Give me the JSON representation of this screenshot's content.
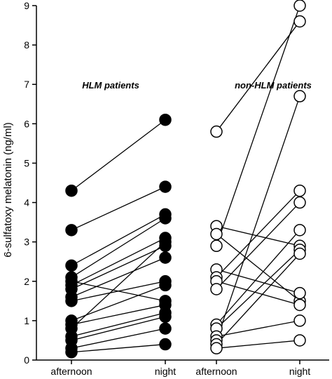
{
  "chart_data": {
    "type": "scatter",
    "ylabel": "6-sulfatoxy melatonin (ng/ml)",
    "ylim": [
      0,
      9
    ],
    "yticks": [
      0,
      1,
      2,
      3,
      4,
      5,
      6,
      7,
      8,
      9
    ],
    "grid": false,
    "categories": [
      "afternoon",
      "night",
      "afternoon",
      "night"
    ],
    "groups": [
      {
        "label": "HLM patients",
        "marker": "filled",
        "categories": [
          "afternoon",
          "night"
        ],
        "pairs": [
          [
            4.3,
            6.1
          ],
          [
            3.3,
            4.4
          ],
          [
            2.4,
            3.7
          ],
          [
            2.1,
            3.6
          ],
          [
            2.0,
            1.5
          ],
          [
            1.9,
            3.1
          ],
          [
            1.8,
            2.9
          ],
          [
            1.6,
            2.6
          ],
          [
            1.5,
            2.0
          ],
          [
            1.0,
            1.9
          ],
          [
            0.9,
            1.4
          ],
          [
            0.8,
            3.0
          ],
          [
            0.6,
            1.2
          ],
          [
            0.5,
            1.1
          ],
          [
            0.3,
            0.8
          ],
          [
            0.2,
            0.4
          ]
        ]
      },
      {
        "label": "non-HLM patients",
        "marker": "open",
        "categories": [
          "afternoon",
          "night"
        ],
        "pairs": [
          [
            5.8,
            8.6
          ],
          [
            3.4,
            2.9
          ],
          [
            3.2,
            1.5
          ],
          [
            2.9,
            9.0
          ],
          [
            2.3,
            1.7
          ],
          [
            2.1,
            4.3
          ],
          [
            2.0,
            1.4
          ],
          [
            1.8,
            4.0
          ],
          [
            0.9,
            3.3
          ],
          [
            0.8,
            2.8
          ],
          [
            0.6,
            1.0
          ],
          [
            0.5,
            6.7
          ],
          [
            0.4,
            2.7
          ],
          [
            0.3,
            0.5
          ]
        ]
      }
    ]
  }
}
